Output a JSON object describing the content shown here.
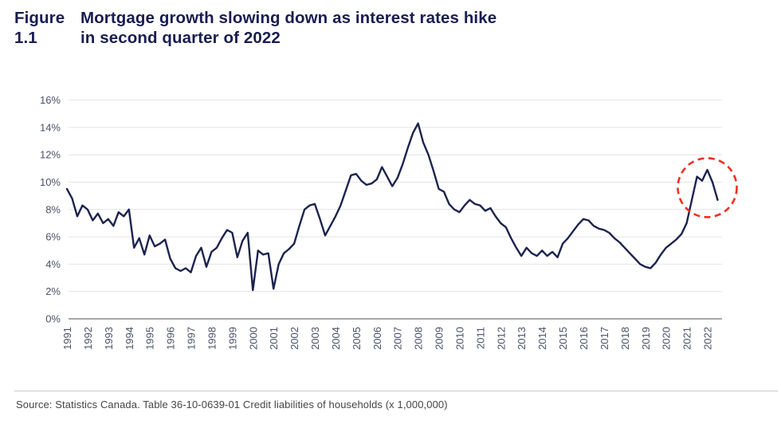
{
  "figure": {
    "label": "Figure 1.1",
    "title_line1": "Mortgage growth slowing down as interest rates hike",
    "title_line2": "in second quarter of 2022"
  },
  "source": {
    "text": "Source: Statistics Canada. Table 36-10-0639-01  Credit liabilities of households (x 1,000,000)"
  },
  "colors": {
    "title_navy": "#191d50",
    "line_navy": "#1c234f",
    "axis_label": "#4a5266",
    "gridline": "#e4e4e4",
    "axis_line": "#8a8a8a",
    "annotation_red": "#ee3023",
    "source_text": "#454545",
    "divider": "#c9c9c9",
    "background": "#ffffff"
  },
  "chart_data": {
    "type": "line",
    "title": "Figure 1.1 Mortgage growth slowing down as interest rates hike in second quarter of 2022",
    "xlabel": "",
    "ylabel": "",
    "grid": "horizontal",
    "legend": "none",
    "ylim": [
      0,
      16
    ],
    "y_tick_values": [
      0,
      2,
      4,
      6,
      8,
      10,
      12,
      14,
      16
    ],
    "y_tick_labels": [
      "0%",
      "2%",
      "4%",
      "6%",
      "8%",
      "10%",
      "12%",
      "14%",
      "16%"
    ],
    "x_ticks": [
      1991,
      1992,
      1993,
      1994,
      1995,
      1996,
      1997,
      1998,
      1999,
      2000,
      2001,
      2002,
      2003,
      2004,
      2005,
      2006,
      2007,
      2008,
      2009,
      2010,
      2011,
      2012,
      2013,
      2014,
      2015,
      2016,
      2017,
      2018,
      2019,
      2020,
      2021,
      2022
    ],
    "x_start_year": 1991.0,
    "x_step_years": 0.25,
    "series": [
      {
        "name": "mortgage-credit-yoy-growth-percent",
        "values": [
          9.5,
          8.8,
          7.5,
          8.3,
          8.0,
          7.2,
          7.7,
          7.0,
          7.3,
          6.8,
          7.8,
          7.5,
          8.0,
          5.2,
          5.9,
          4.7,
          6.1,
          5.3,
          5.5,
          5.8,
          4.4,
          3.7,
          3.5,
          3.7,
          3.4,
          4.6,
          5.2,
          3.8,
          4.9,
          5.2,
          5.9,
          6.5,
          6.3,
          4.5,
          5.7,
          6.3,
          2.1,
          5.0,
          4.7,
          4.8,
          2.2,
          4.0,
          4.8,
          5.1,
          5.5,
          6.8,
          8.0,
          8.3,
          8.4,
          7.3,
          6.1,
          6.8,
          7.5,
          8.3,
          9.4,
          10.5,
          10.6,
          10.1,
          9.8,
          9.9,
          10.2,
          11.1,
          10.4,
          9.7,
          10.3,
          11.3,
          12.5,
          13.6,
          14.3,
          12.9,
          12.0,
          10.8,
          9.5,
          9.3,
          8.4,
          8.0,
          7.8,
          8.3,
          8.7,
          8.4,
          8.3,
          7.9,
          8.1,
          7.5,
          7.0,
          6.7,
          5.9,
          5.2,
          4.6,
          5.2,
          4.8,
          4.6,
          5.0,
          4.6,
          4.9,
          4.5,
          5.5,
          5.9,
          6.4,
          6.9,
          7.3,
          7.2,
          6.8,
          6.6,
          6.5,
          6.3,
          5.9,
          5.6,
          5.2,
          4.8,
          4.4,
          4.0,
          3.8,
          3.7,
          4.1,
          4.7,
          5.2,
          5.5,
          5.8,
          6.2,
          7.0,
          8.7,
          10.4,
          10.1,
          10.9,
          10.0,
          8.7
        ]
      }
    ],
    "annotation": {
      "shape": "dashed-circle",
      "center_year": 2022.0,
      "center_value": 9.6,
      "radius_px": 37,
      "color": "#ee3023"
    }
  }
}
